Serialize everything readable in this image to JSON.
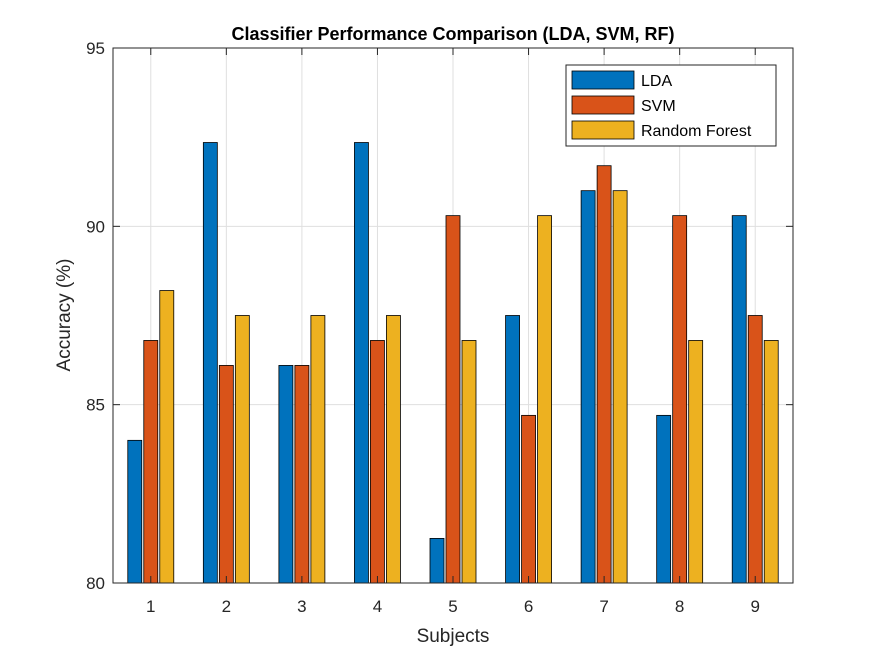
{
  "chart_data": {
    "type": "bar",
    "title": "Classifier Performance Comparison (LDA, SVM, RF)",
    "xlabel": "Subjects",
    "ylabel": "Accuracy (%)",
    "categories": [
      "1",
      "2",
      "3",
      "4",
      "5",
      "6",
      "7",
      "8",
      "9"
    ],
    "ylim": [
      80,
      95
    ],
    "yticks": [
      80,
      85,
      90,
      95
    ],
    "grid": true,
    "legend_position": "top-right",
    "series": [
      {
        "name": "LDA",
        "color": "#0072BD",
        "values": [
          84.0,
          92.35,
          86.1,
          92.35,
          81.25,
          87.5,
          91.0,
          84.7,
          90.3
        ]
      },
      {
        "name": "SVM",
        "color": "#D95319",
        "values": [
          86.8,
          86.1,
          86.1,
          86.8,
          90.3,
          84.7,
          91.7,
          90.3,
          87.5
        ]
      },
      {
        "name": "Random Forest",
        "color": "#EDB120",
        "values": [
          88.2,
          87.5,
          87.5,
          87.5,
          86.8,
          90.3,
          91.0,
          86.8,
          86.8
        ]
      }
    ]
  }
}
